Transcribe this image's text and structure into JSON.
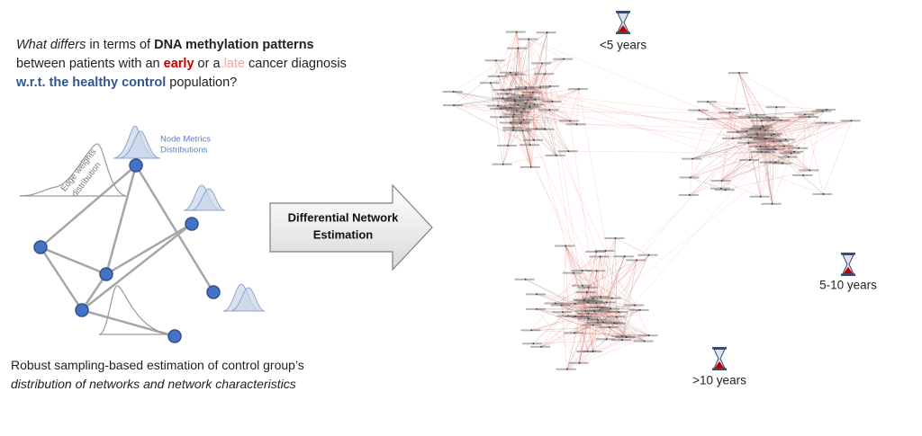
{
  "question": {
    "parts": [
      "What differs",
      "in terms of",
      "DNA methylation patterns",
      "between patients with an",
      "early",
      "or a",
      "late",
      "cancer diagnosis",
      "w.r.t. the healthy control",
      "population?"
    ]
  },
  "left_panel": {
    "node_metrics_label": [
      "Node Metrics",
      "Distributions"
    ],
    "edge_weights_label": [
      "Edge weights",
      "distribution"
    ],
    "caption": [
      "Robust sampling-based estimation of control group’s",
      "distribution of networks and network characteristics"
    ]
  },
  "arrow": {
    "label": [
      "Differential Network",
      "Estimation"
    ]
  },
  "networks": [
    {
      "label": "<5 years"
    },
    {
      "label": "5-10 years"
    },
    {
      "label": ">10 years"
    }
  ]
}
